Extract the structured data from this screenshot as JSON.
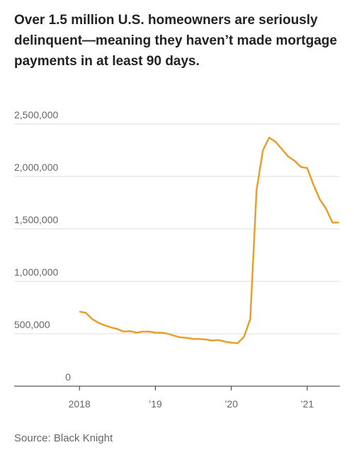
{
  "chart_data": {
    "type": "line",
    "title": "Over 1.5 million U.S. homeowners are seriously delinquent—meaning they haven’t made mortgage payments in at least 90 days.",
    "source": "Source: Black Knight",
    "x": [
      2018,
      2018.083,
      2018.167,
      2018.25,
      2018.333,
      2018.417,
      2018.5,
      2018.583,
      2018.667,
      2018.75,
      2018.833,
      2018.917,
      2019,
      2019.083,
      2019.167,
      2019.25,
      2019.333,
      2019.417,
      2019.5,
      2019.583,
      2019.667,
      2019.75,
      2019.833,
      2019.917,
      2020,
      2020.083,
      2020.167,
      2020.25,
      2020.333,
      2020.417,
      2020.5,
      2020.583,
      2020.667,
      2020.75,
      2020.833,
      2020.917,
      2021,
      2021.083,
      2021.167,
      2021.25,
      2021.333,
      2021.417
    ],
    "series": [
      {
        "color": "#e8a02d",
        "values": [
          710000,
          700000,
          640000,
          605000,
          580000,
          560000,
          545000,
          520000,
          525000,
          510000,
          520000,
          520000,
          510000,
          510000,
          500000,
          480000,
          465000,
          460000,
          450000,
          450000,
          445000,
          435000,
          440000,
          425000,
          415000,
          410000,
          470000,
          640000,
          1870000,
          2250000,
          2370000,
          2330000,
          2260000,
          2190000,
          2150000,
          2090000,
          2080000,
          1920000,
          1780000,
          1690000,
          1560000,
          1560000
        ]
      }
    ],
    "xlim": [
      2017.14,
      2021.43
    ],
    "xticks": [
      2018,
      {
        "value": 2019,
        "label": "’19"
      },
      {
        "value": 2020,
        "label": "’20"
      },
      {
        "value": 2021,
        "label": "’21"
      }
    ],
    "ylim": [
      0,
      2500000
    ],
    "yticks": [
      0,
      {
        "value": 500000,
        "label": "500,000"
      },
      {
        "value": 1000000,
        "label": "1,000,000"
      },
      {
        "value": 1500000,
        "label": "1,500,000"
      },
      {
        "value": 2000000,
        "label": "2,000,000"
      },
      {
        "value": 2500000,
        "label": "2,500,000"
      }
    ],
    "grid": true
  }
}
